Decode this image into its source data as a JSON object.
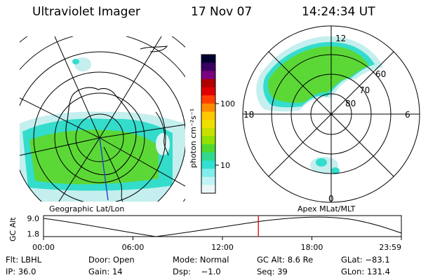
{
  "header": {
    "title": "Ultraviolet Imager",
    "date": "17 Nov 07",
    "time": "14:24:34 UT"
  },
  "left_panel": {
    "caption": "Geographic Lat/Lon"
  },
  "right_panel": {
    "caption": "Apex MLat/MLT",
    "mlt_labels": {
      "top": "12",
      "left": "18",
      "right": "6",
      "bottom": "0"
    },
    "lat_labels": [
      "60",
      "70",
      "80"
    ]
  },
  "colorbar": {
    "unit_label": "photon cm⁻²s⁻¹",
    "tick_labels": [
      "100",
      "10"
    ],
    "colors": [
      "#000030",
      "#3a0060",
      "#7a0080",
      "#b00000",
      "#e00000",
      "#ff4000",
      "#ff8c00",
      "#ffc800",
      "#f0e000",
      "#c8e000",
      "#90e000",
      "#50d830",
      "#30d890",
      "#30e0d0",
      "#80ecec",
      "#c0f4f4",
      "#eaf8f8"
    ]
  },
  "altitude_plot": {
    "ylabel": "GC Alt",
    "yticks": [
      "9.0",
      "1.8"
    ],
    "xticks": [
      "00:00",
      "06:00",
      "12:00",
      "18:00",
      "23:59"
    ],
    "current_time_hours": 14.41,
    "marker_color": "#e00000"
  },
  "footer": {
    "row1": [
      "Flt: LBHL",
      "Door: Open",
      "Mode: Normal",
      "GC Alt: 8.6 Re",
      "GLat: −83.1"
    ],
    "row2": [
      "IP: 36.0",
      "Gain: 14",
      "Dsp:    −1.0",
      "Seq: 39",
      "GLon: 131.4"
    ]
  }
}
